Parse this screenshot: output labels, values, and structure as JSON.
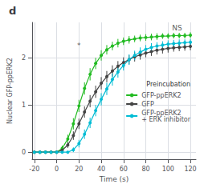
{
  "chart_data": {
    "type": "line",
    "title": "d",
    "x_label": "Time (s)",
    "y_label": "Nuclear GFP-ppERK2",
    "x": [
      -20,
      -15,
      -10,
      -5,
      0,
      5,
      10,
      15,
      20,
      25,
      30,
      35,
      40,
      45,
      50,
      55,
      60,
      65,
      70,
      75,
      80,
      85,
      90,
      95,
      100,
      105,
      110,
      115,
      120
    ],
    "xlim": [
      -22,
      125
    ],
    "xticks": [
      -20,
      0,
      20,
      40,
      60,
      80,
      100,
      120
    ],
    "ylim": [
      -0.15,
      2.75
    ],
    "yticks": [
      0,
      1,
      2
    ],
    "grid": true,
    "legend": "right",
    "legend_title": "Preincubation",
    "marker": "circle",
    "series": [
      {
        "name": "GFP-ppERK2",
        "color": "#22bb22",
        "values": [
          0.0,
          0.0,
          0.0,
          0.0,
          0.0,
          0.08,
          0.28,
          0.6,
          0.98,
          1.35,
          1.65,
          1.88,
          2.05,
          2.17,
          2.25,
          2.31,
          2.35,
          2.38,
          2.4,
          2.42,
          2.43,
          2.44,
          2.45,
          2.46,
          2.46,
          2.47,
          2.47,
          2.47,
          2.48
        ],
        "errors": [
          0.0,
          0.0,
          0.0,
          0.0,
          0.0,
          0.06,
          0.09,
          0.12,
          0.13,
          0.13,
          0.13,
          0.12,
          0.11,
          0.1,
          0.09,
          0.09,
          0.08,
          0.08,
          0.07,
          0.07,
          0.07,
          0.07,
          0.07,
          0.06,
          0.06,
          0.06,
          0.06,
          0.06,
          0.06
        ]
      },
      {
        "name": "GFP",
        "color": "#444444",
        "values": [
          0.0,
          0.0,
          0.0,
          0.0,
          0.0,
          0.04,
          0.15,
          0.35,
          0.6,
          0.85,
          1.08,
          1.28,
          1.46,
          1.6,
          1.72,
          1.82,
          1.9,
          1.96,
          2.02,
          2.06,
          2.1,
          2.13,
          2.16,
          2.18,
          2.2,
          2.21,
          2.22,
          2.23,
          2.24
        ],
        "errors": [
          0.0,
          0.0,
          0.0,
          0.0,
          0.0,
          0.04,
          0.06,
          0.09,
          0.11,
          0.12,
          0.13,
          0.13,
          0.13,
          0.12,
          0.12,
          0.11,
          0.11,
          0.1,
          0.1,
          0.1,
          0.09,
          0.09,
          0.09,
          0.09,
          0.09,
          0.08,
          0.08,
          0.08,
          0.08
        ]
      },
      {
        "name": "GFP-ppERK2\n+ ERK inhibitor",
        "color": "#00bcd4",
        "values": [
          0.0,
          0.0,
          0.0,
          0.0,
          0.0,
          0.0,
          0.0,
          0.05,
          0.18,
          0.38,
          0.62,
          0.88,
          1.12,
          1.34,
          1.54,
          1.7,
          1.84,
          1.96,
          2.05,
          2.12,
          2.18,
          2.22,
          2.25,
          2.27,
          2.29,
          2.3,
          2.31,
          2.32,
          2.33
        ],
        "errors": [
          0.0,
          0.0,
          0.0,
          0.0,
          0.0,
          0.0,
          0.0,
          0.05,
          0.08,
          0.1,
          0.11,
          0.12,
          0.13,
          0.13,
          0.13,
          0.12,
          0.11,
          0.11,
          0.1,
          0.1,
          0.09,
          0.09,
          0.08,
          0.08,
          0.08,
          0.08,
          0.08,
          0.07,
          0.07
        ]
      }
    ],
    "annotations": [
      {
        "text": "NS",
        "x": 108,
        "y": 2.55
      },
      {
        "text": "*",
        "x": 20,
        "y": 2.18
      }
    ]
  }
}
